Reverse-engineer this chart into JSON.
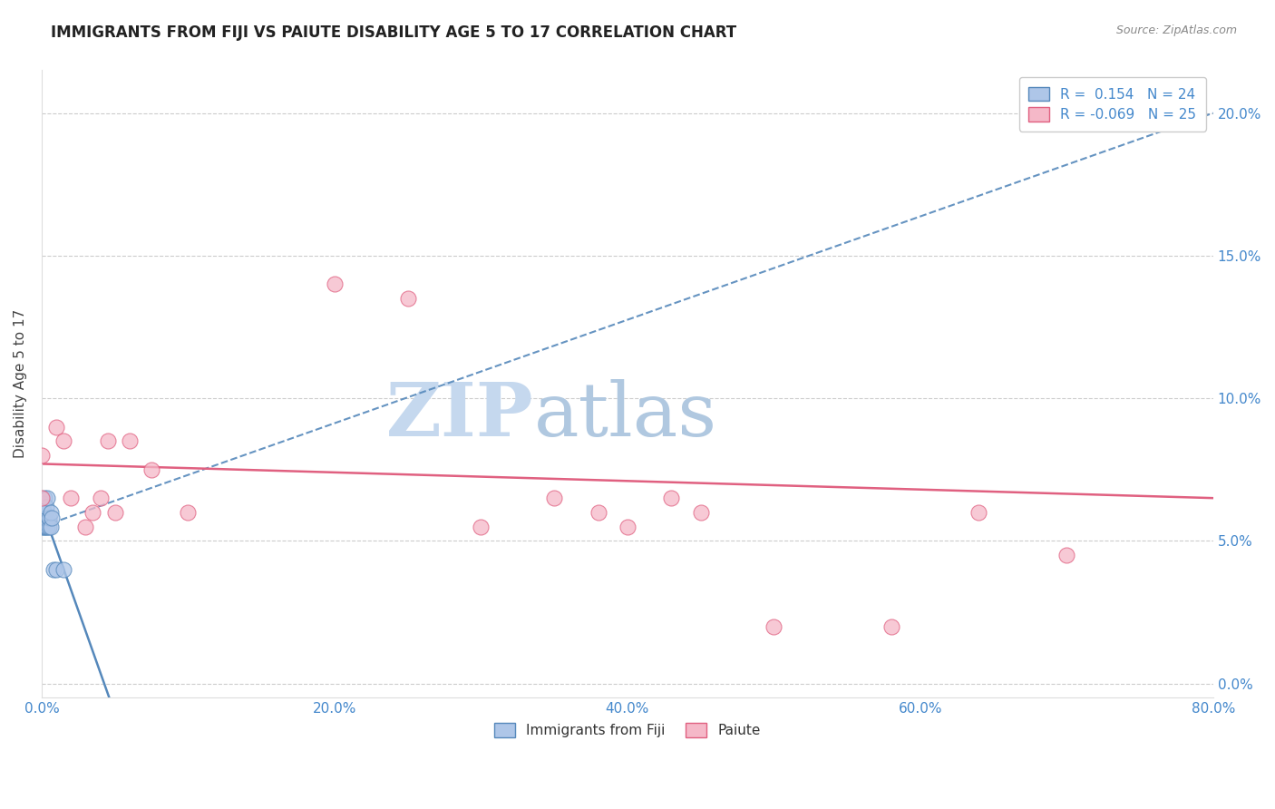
{
  "title": "IMMIGRANTS FROM FIJI VS PAIUTE DISABILITY AGE 5 TO 17 CORRELATION CHART",
  "source": "Source: ZipAtlas.com",
  "ylabel": "Disability Age 5 to 17",
  "legend_label1": "Immigrants from Fiji",
  "legend_label2": "Paiute",
  "r1": 0.154,
  "n1": 24,
  "r2": -0.069,
  "n2": 25,
  "color1": "#aec6e8",
  "color2": "#f5b8c8",
  "line1_color": "#5588bb",
  "line2_color": "#e06080",
  "xlim": [
    0.0,
    0.8
  ],
  "ylim": [
    -0.005,
    0.215
  ],
  "yticks": [
    0.0,
    0.05,
    0.1,
    0.15,
    0.2
  ],
  "xticks": [
    0.0,
    0.2,
    0.4,
    0.6,
    0.8
  ],
  "fiji_x": [
    0.0,
    0.0,
    0.0,
    0.001,
    0.001,
    0.001,
    0.001,
    0.002,
    0.002,
    0.002,
    0.002,
    0.003,
    0.003,
    0.003,
    0.004,
    0.004,
    0.005,
    0.005,
    0.006,
    0.006,
    0.007,
    0.008,
    0.01,
    0.015
  ],
  "fiji_y": [
    0.055,
    0.06,
    0.062,
    0.055,
    0.057,
    0.06,
    0.063,
    0.055,
    0.058,
    0.06,
    0.065,
    0.055,
    0.058,
    0.062,
    0.055,
    0.065,
    0.055,
    0.058,
    0.055,
    0.06,
    0.058,
    0.04,
    0.04,
    0.04
  ],
  "paiute_x": [
    0.0,
    0.0,
    0.01,
    0.015,
    0.02,
    0.03,
    0.035,
    0.04,
    0.045,
    0.05,
    0.06,
    0.075,
    0.1,
    0.2,
    0.25,
    0.3,
    0.35,
    0.38,
    0.4,
    0.43,
    0.45,
    0.5,
    0.58,
    0.64,
    0.7
  ],
  "paiute_y": [
    0.08,
    0.065,
    0.09,
    0.085,
    0.065,
    0.055,
    0.06,
    0.065,
    0.085,
    0.06,
    0.085,
    0.075,
    0.06,
    0.14,
    0.135,
    0.055,
    0.065,
    0.06,
    0.055,
    0.065,
    0.06,
    0.02,
    0.02,
    0.06,
    0.045
  ],
  "watermark_zip": "ZIP",
  "watermark_atlas": "atlas",
  "watermark_color_zip": "#c5d8ee",
  "watermark_color_atlas": "#b0c8e0",
  "background_color": "#ffffff",
  "title_fontsize": 12,
  "axis_label_fontsize": 11,
  "tick_fontsize": 11,
  "tick_color": "#4488cc",
  "grid_color": "#cccccc",
  "source_color": "#888888"
}
